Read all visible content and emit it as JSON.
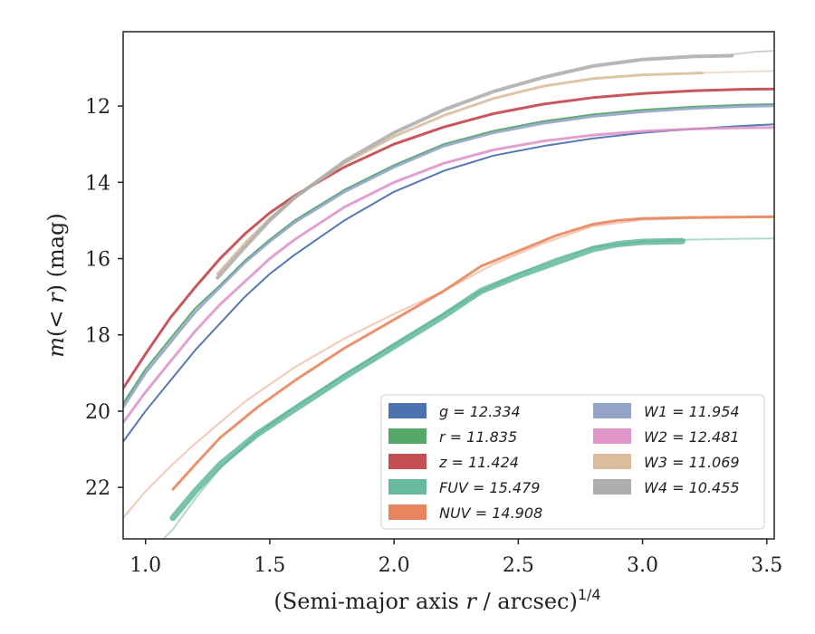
{
  "chart_data": {
    "type": "line",
    "xlabel": "(Semi-major axis r / arcsec)^{1/4}",
    "ylabel": "m(< r) (mag)",
    "xlim": [
      0.91,
      3.53
    ],
    "ylim": [
      23.35,
      10.05
    ],
    "y_inverted": true,
    "xticks": [
      "1.0",
      "1.5",
      "2.0",
      "2.5",
      "3.0",
      "3.5"
    ],
    "yticks": [
      "12",
      "14",
      "16",
      "18",
      "20",
      "22"
    ],
    "grid": false,
    "legend_position": "lower-right",
    "legend_columns": 2,
    "series": [
      {
        "name": "g = 12.334",
        "color": "#4c72b0",
        "opacity": 0.95,
        "width": 2,
        "x": [
          0.91,
          1.0,
          1.1,
          1.2,
          1.3,
          1.4,
          1.5,
          1.6,
          1.8,
          2.0,
          2.2,
          2.4,
          2.6,
          2.8,
          3.0,
          3.2,
          3.4,
          3.53
        ],
        "y": [
          20.8,
          20.0,
          19.2,
          18.4,
          17.7,
          17.0,
          16.4,
          15.9,
          15.0,
          14.25,
          13.7,
          13.3,
          13.05,
          12.85,
          12.7,
          12.6,
          12.52,
          12.48
        ]
      },
      {
        "name": "r = 11.835",
        "color": "#55a868",
        "opacity": 0.95,
        "width": 2,
        "x": [
          0.91,
          1.0,
          1.1,
          1.2,
          1.3,
          1.4,
          1.5,
          1.6,
          1.8,
          2.0,
          2.2,
          2.4,
          2.6,
          2.8,
          3.0,
          3.2,
          3.4,
          3.53
        ],
        "y": [
          19.8,
          18.9,
          18.1,
          17.3,
          16.7,
          16.05,
          15.5,
          15.0,
          14.2,
          13.55,
          13.0,
          12.65,
          12.4,
          12.22,
          12.1,
          12.02,
          11.97,
          11.95
        ]
      },
      {
        "name": "z = 11.424",
        "color": "#c44e52",
        "opacity": 0.95,
        "width": 3,
        "x": [
          0.91,
          1.0,
          1.1,
          1.2,
          1.3,
          1.4,
          1.5,
          1.6,
          1.8,
          2.0,
          2.2,
          2.4,
          2.6,
          2.8,
          3.0,
          3.2,
          3.4,
          3.53
        ],
        "y": [
          19.4,
          18.5,
          17.55,
          16.75,
          16.0,
          15.35,
          14.8,
          14.35,
          13.6,
          13.0,
          12.55,
          12.2,
          11.95,
          11.78,
          11.67,
          11.6,
          11.56,
          11.55
        ]
      },
      {
        "name": "FUV = 15.479",
        "color": "#4cae8f",
        "opacity": 0.75,
        "width": 7,
        "x": [
          1.11,
          1.2,
          1.3,
          1.45,
          1.6,
          1.8,
          2.0,
          2.2,
          2.35,
          2.5,
          2.65,
          2.8,
          2.9,
          3.0,
          3.16
        ],
        "y": [
          22.8,
          22.1,
          21.4,
          20.6,
          19.95,
          19.1,
          18.3,
          17.5,
          16.85,
          16.45,
          16.1,
          15.75,
          15.62,
          15.56,
          15.54
        ]
      },
      {
        "name": "NUV = 14.908",
        "color": "#e8855e",
        "opacity": 0.9,
        "width": 3,
        "x": [
          1.11,
          1.2,
          1.3,
          1.45,
          1.6,
          1.8,
          2.0,
          2.2,
          2.35,
          2.5,
          2.65,
          2.8,
          2.9,
          3.0,
          3.2,
          3.4,
          3.53
        ],
        "y": [
          22.05,
          21.4,
          20.7,
          19.9,
          19.2,
          18.35,
          17.6,
          16.85,
          16.2,
          15.8,
          15.4,
          15.1,
          15.0,
          14.95,
          14.92,
          14.91,
          14.9
        ]
      },
      {
        "name": "W1 = 11.954",
        "color": "#8d9fc5",
        "opacity": 0.85,
        "width": 3,
        "x": [
          0.91,
          1.0,
          1.1,
          1.2,
          1.3,
          1.4,
          1.5,
          1.6,
          1.8,
          2.0,
          2.2,
          2.4,
          2.6,
          2.8,
          3.0,
          3.2,
          3.4,
          3.53
        ],
        "y": [
          19.9,
          19.0,
          18.2,
          17.4,
          16.75,
          16.1,
          15.55,
          15.05,
          14.25,
          13.6,
          13.05,
          12.7,
          12.45,
          12.27,
          12.15,
          12.06,
          12.01,
          11.99
        ]
      },
      {
        "name": "W2 = 12.481",
        "color": "#dd8fc5",
        "opacity": 0.85,
        "width": 3,
        "x": [
          0.91,
          1.0,
          1.1,
          1.2,
          1.3,
          1.4,
          1.5,
          1.6,
          1.8,
          2.0,
          2.2,
          2.4,
          2.6,
          2.8,
          3.0,
          3.2,
          3.4,
          3.53
        ],
        "y": [
          20.3,
          19.5,
          18.7,
          17.9,
          17.2,
          16.6,
          16.0,
          15.5,
          14.65,
          14.0,
          13.5,
          13.15,
          12.92,
          12.76,
          12.66,
          12.6,
          12.57,
          12.56
        ]
      },
      {
        "name": "W3 = 11.069",
        "color": "#d9b998",
        "opacity": 0.85,
        "width": 3,
        "x": [
          1.29,
          1.4,
          1.5,
          1.6,
          1.8,
          2.0,
          2.2,
          2.4,
          2.6,
          2.8,
          3.0,
          3.2,
          3.24
        ],
        "y": [
          16.4,
          15.6,
          14.95,
          14.4,
          13.5,
          12.8,
          12.25,
          11.8,
          11.48,
          11.28,
          11.18,
          11.14,
          11.13
        ]
      },
      {
        "name": "W4 = 10.455",
        "color": "#aaaaaa",
        "opacity": 0.85,
        "width": 4,
        "x": [
          1.29,
          1.4,
          1.5,
          1.6,
          1.8,
          2.0,
          2.2,
          2.4,
          2.6,
          2.8,
          3.0,
          3.2,
          3.36
        ],
        "y": [
          16.5,
          15.7,
          15.0,
          14.4,
          13.45,
          12.7,
          12.1,
          11.62,
          11.25,
          10.95,
          10.78,
          10.7,
          10.68
        ]
      }
    ],
    "extended_profiles": [
      {
        "color": "#e8855e",
        "opacity": 0.45,
        "width": 2,
        "x": [
          0.91,
          1.0,
          1.1,
          1.2,
          1.4,
          1.6,
          1.8,
          2.0,
          2.2,
          2.4,
          2.6,
          2.8,
          3.0,
          3.2,
          3.4,
          3.53
        ],
        "y": [
          22.8,
          22.1,
          21.45,
          20.85,
          19.75,
          18.85,
          18.1,
          17.45,
          16.85,
          16.15,
          15.6,
          15.15,
          14.98,
          14.94,
          14.92,
          14.91
        ]
      },
      {
        "color": "#4cae8f",
        "opacity": 0.45,
        "width": 2,
        "x": [
          1.05,
          1.11,
          1.2,
          1.3,
          1.45,
          1.6,
          1.8,
          2.0,
          2.2,
          2.35,
          2.5,
          2.65,
          2.8,
          3.0,
          3.2,
          3.4,
          3.53
        ],
        "y": [
          23.5,
          23.1,
          22.3,
          21.5,
          20.6,
          19.9,
          19.05,
          18.25,
          17.45,
          16.85,
          16.4,
          16.0,
          15.7,
          15.55,
          15.5,
          15.48,
          15.47
        ]
      },
      {
        "color": "#d9b998",
        "opacity": 0.5,
        "width": 2,
        "x": [
          3.24,
          3.4,
          3.53
        ],
        "y": [
          11.13,
          11.1,
          11.08
        ]
      },
      {
        "color": "#aaaaaa",
        "opacity": 0.55,
        "width": 2,
        "x": [
          3.36,
          3.45,
          3.53
        ],
        "y": [
          10.65,
          10.58,
          10.55
        ]
      }
    ]
  }
}
